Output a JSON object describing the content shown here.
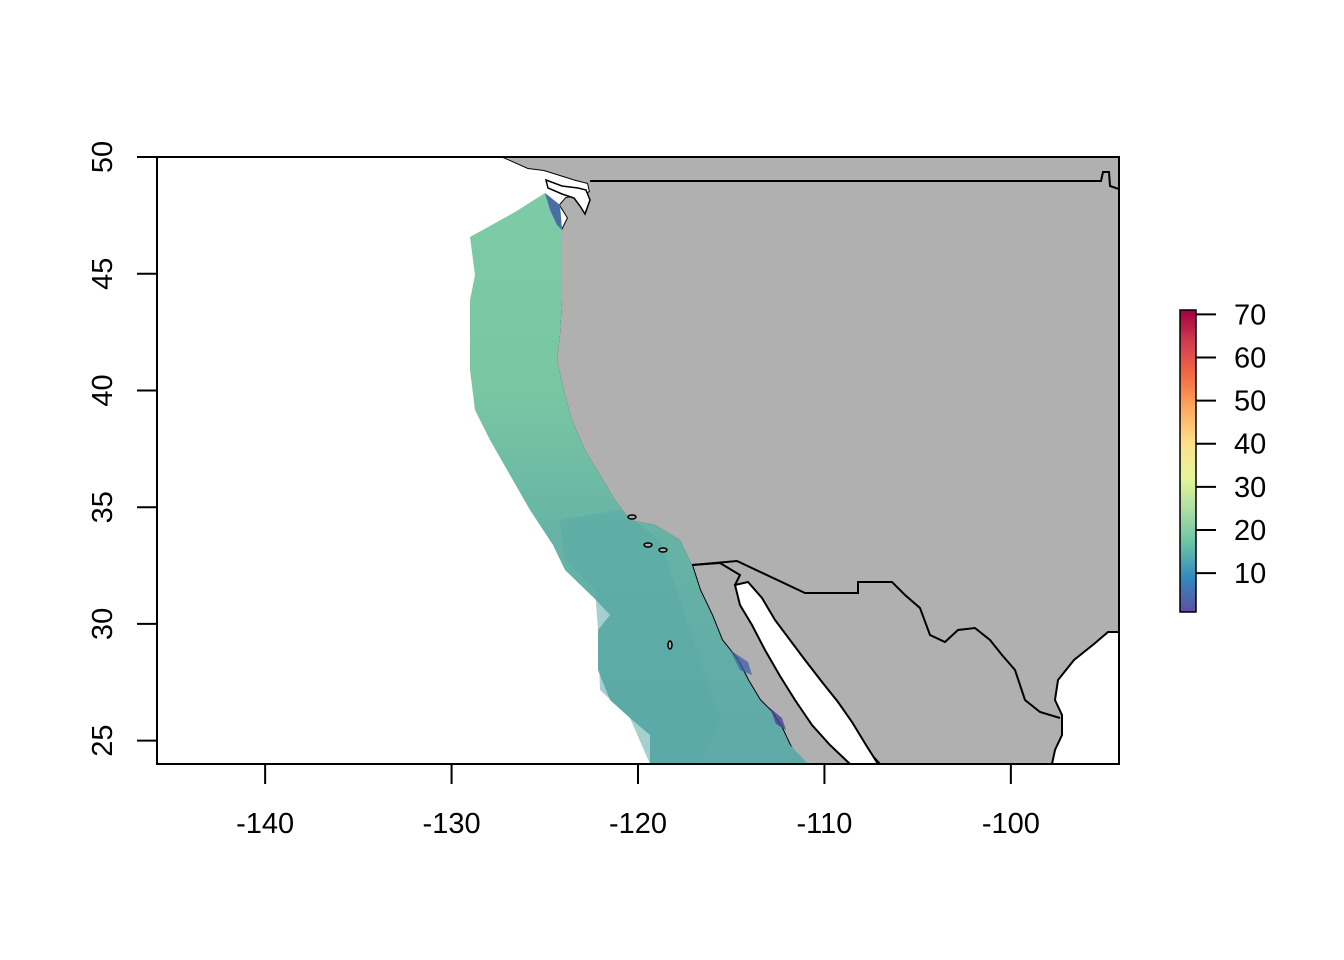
{
  "map": {
    "x_ticks": [
      "-140",
      "-130",
      "-120",
      "-110",
      "-100"
    ],
    "y_ticks": [
      "25",
      "30",
      "35",
      "40",
      "45",
      "50"
    ],
    "x_tick_values": [
      -140,
      -130,
      -120,
      -110,
      -100
    ],
    "y_tick_values": [
      25,
      30,
      35,
      40,
      45,
      50
    ],
    "xlim": [
      -145.8,
      -94.2
    ],
    "ylim": [
      24,
      50
    ],
    "land_color": "#b0b0b0",
    "background_color": "#ffffff",
    "border_color": "#000000"
  },
  "legend": {
    "labels": [
      "70",
      "60",
      "50",
      "40",
      "30",
      "20",
      "10"
    ],
    "values": [
      70,
      60,
      50,
      40,
      30,
      20,
      10
    ],
    "range": [
      1,
      71
    ],
    "colors": [
      "#5e4fa2",
      "#3288bd",
      "#66c2a5",
      "#abdda4",
      "#e6f598",
      "#fee08b",
      "#fdae61",
      "#f46d43",
      "#d53e4f",
      "#9e0142"
    ]
  }
}
